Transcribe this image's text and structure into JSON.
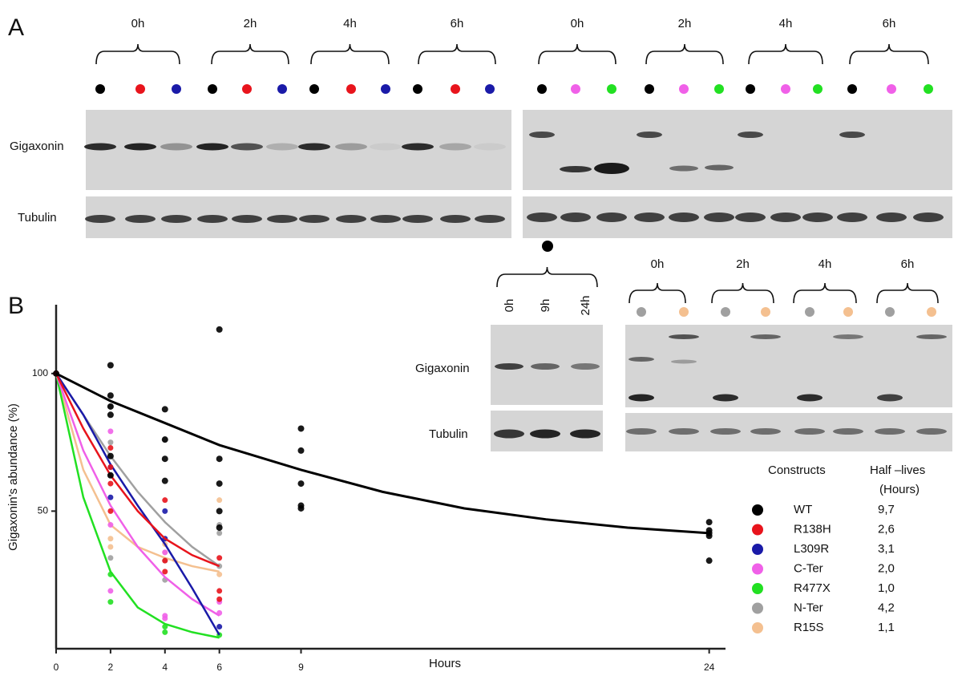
{
  "panel_a": {
    "label": "A",
    "left_times": [
      "0h",
      "2h",
      "4h",
      "6h"
    ],
    "right_times": [
      "0h",
      "2h",
      "4h",
      "6h"
    ],
    "gigaxonin_label": "Gigaxonin",
    "tubulin_label": "Tubulin"
  },
  "panel_chase": {
    "lanes": [
      "0h",
      "9h",
      "24h"
    ],
    "gigaxonin_label": "Gigaxonin",
    "tubulin_label": "Tubulin"
  },
  "panel_nter": {
    "times": [
      "0h",
      "2h",
      "4h",
      "6h"
    ]
  },
  "chart_data": {
    "type": "scatter",
    "panel_label": "B",
    "x_label": "Hours",
    "y_label": "Gigaxonin's abundance  (%)",
    "xlim": [
      0,
      24.6
    ],
    "ylim": [
      0,
      125
    ],
    "xticks": [
      0,
      2,
      4,
      6,
      9,
      24
    ],
    "yticks": [
      50,
      100
    ],
    "legend_title": "Constructs",
    "half_life_title": "Half –lives",
    "half_life_unit": "(Hours)",
    "series": [
      {
        "name": "WT",
        "color": "#000000",
        "half_life": "9,7",
        "x": [
          0,
          2,
          2,
          2,
          2,
          2,
          2,
          4,
          4,
          4,
          4,
          6,
          6,
          6,
          6,
          6,
          9,
          9,
          9,
          9,
          9,
          24,
          24,
          24,
          24,
          24
        ],
        "values": [
          100,
          103,
          92,
          88,
          85,
          70,
          63,
          87,
          76,
          69,
          61,
          116,
          69,
          60,
          50,
          44,
          80,
          72,
          60,
          52,
          51,
          46,
          43,
          42,
          41,
          32
        ],
        "fit_x": [
          0,
          2,
          4,
          6,
          9,
          12,
          15,
          18,
          21,
          24
        ],
        "fit_values": [
          100,
          90,
          82,
          74,
          65,
          57,
          51,
          47,
          44,
          42
        ]
      },
      {
        "name": "R138H",
        "color": "#e8141c",
        "half_life": "2,6",
        "x": [
          0,
          2,
          2,
          2,
          2,
          4,
          4,
          4,
          6,
          6,
          6
        ],
        "values": [
          100,
          73,
          66,
          60,
          50,
          54,
          32,
          28,
          33,
          21,
          18
        ],
        "fit_x": [
          0,
          1,
          2,
          3,
          4,
          5,
          6
        ],
        "fit_values": [
          100,
          80,
          63,
          50,
          40,
          34,
          30
        ]
      },
      {
        "name": "L309R",
        "color": "#1a1aa8",
        "half_life": "3,1",
        "x": [
          0,
          2,
          2,
          4,
          4,
          6
        ],
        "values": [
          100,
          66,
          55,
          50,
          40,
          8
        ],
        "fit_x": [
          0,
          1,
          2,
          3,
          4,
          5,
          6
        ],
        "fit_values": [
          100,
          85,
          67,
          52,
          38,
          22,
          5
        ]
      },
      {
        "name": "C-Ter",
        "color": "#f060e8",
        "half_life": "2,0",
        "x": [
          0,
          2,
          2,
          2,
          4,
          4,
          4,
          6,
          6
        ],
        "values": [
          100,
          79,
          45,
          21,
          35,
          12,
          11,
          17,
          13
        ],
        "fit_x": [
          0,
          1,
          2,
          3,
          4,
          5,
          6
        ],
        "fit_values": [
          100,
          72,
          52,
          37,
          26,
          18,
          12
        ]
      },
      {
        "name": "R477X",
        "color": "#22e022",
        "half_life": "1,0",
        "x": [
          0,
          2,
          2,
          4,
          4,
          6
        ],
        "values": [
          100,
          27,
          17,
          8,
          6,
          5
        ],
        "fit_x": [
          0,
          1,
          2,
          3,
          4,
          5,
          6
        ],
        "fit_values": [
          100,
          55,
          28,
          15,
          9,
          6,
          4
        ]
      },
      {
        "name": "N-Ter",
        "color": "#a0a0a0",
        "half_life": "4,2",
        "x": [
          0,
          2,
          2,
          2,
          2,
          4,
          4,
          4,
          6,
          6,
          6
        ],
        "values": [
          100,
          88,
          75,
          63,
          33,
          76,
          32,
          25,
          45,
          42,
          30
        ],
        "fit_x": [
          0,
          1,
          2,
          3,
          4,
          5,
          6
        ],
        "fit_values": [
          100,
          85,
          70,
          57,
          46,
          37,
          30
        ]
      },
      {
        "name": "R15S",
        "color": "#f4c090",
        "half_life": "1,1",
        "x": [
          0,
          2,
          2,
          4,
          4,
          6,
          6
        ],
        "values": [
          100,
          40,
          37,
          38,
          35,
          54,
          27
        ],
        "fit_x": [
          0,
          1,
          2,
          3,
          4,
          5,
          6
        ],
        "fit_values": [
          100,
          65,
          45,
          37,
          33,
          30,
          28
        ]
      }
    ]
  }
}
